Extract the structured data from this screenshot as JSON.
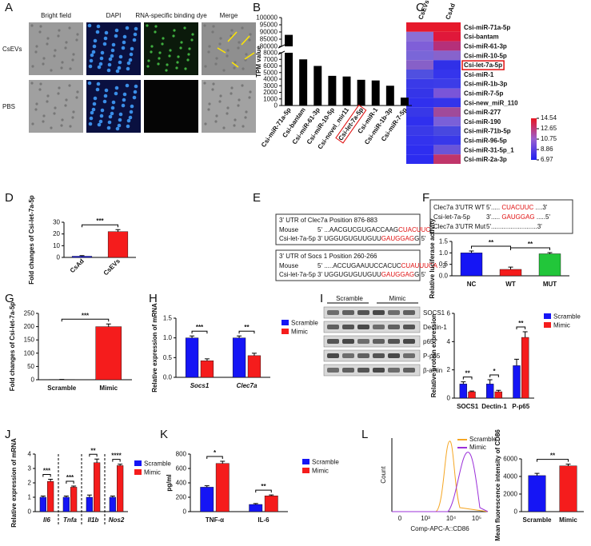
{
  "panel_labels": [
    "A",
    "B",
    "C",
    "D",
    "E",
    "F",
    "G",
    "H",
    "I",
    "J",
    "K",
    "L"
  ],
  "panel_a": {
    "columns": [
      "Bright field",
      "DAPI",
      "RNA-specific binding dye",
      "Merge"
    ],
    "rows": [
      "CsEVs",
      "PBS"
    ]
  },
  "panel_c": {
    "columns": [
      "CsEVs",
      "CsAd"
    ],
    "rows": [
      "Csi-miR-71a-5p",
      "Csi-bantam",
      "Csi-miR-61-3p",
      "Csi-miR-10-5p",
      "Csi-let-7a-5p",
      "Csi-miR-1",
      "Csi-miR-1b-3p",
      "Csi-miR-7-5p",
      "Csi-new_miR_110",
      "Csi-miR-277",
      "Csi-miR-190",
      "Csi-miR-71b-5p",
      "Csi-miR-96-5p",
      "Csi-miR-31-5p_1",
      "Csi-miR-2a-3p"
    ],
    "cells": [
      [
        "#e6192b",
        "#e6192b"
      ],
      [
        "#8a6fd6",
        "#e0183a"
      ],
      [
        "#7f5fd8",
        "#b5307a"
      ],
      [
        "#7a66d8",
        "#8763cc"
      ],
      [
        "#8760c8",
        "#3030e8"
      ],
      [
        "#5050e0",
        "#3535ec"
      ],
      [
        "#3a3ae8",
        "#3c3ce8"
      ],
      [
        "#3535e8",
        "#7a55d8"
      ],
      [
        "#3030ee",
        "#3434ea"
      ],
      [
        "#3838e8",
        "#a04a9a"
      ],
      [
        "#3030ee",
        "#7a60d8"
      ],
      [
        "#3a3ae8",
        "#4848e0"
      ],
      [
        "#3333ee",
        "#3838ea"
      ],
      [
        "#2e2ef0",
        "#6a55d8"
      ],
      [
        "#2c2cf0",
        "#c0356a"
      ]
    ],
    "colorbar": {
      "ticks": [
        14.54,
        12.65,
        10.75,
        8.86,
        6.97
      ]
    }
  },
  "panel_e": {
    "boxes": [
      {
        "title": "3' UTR of Clec7a Position 876-883",
        "lines": [
          {
            "label": "Mouse",
            "seq": [
              "5' ...AACGUCGUGACCAAG",
              "CUACUUCC",
              " ...3'"
            ]
          },
          {
            "label": "Csi-let-7a-5p",
            "seq": [
              "3' UGGUGUGUUGUU",
              "GAUGGAG",
              "G  5'"
            ]
          }
        ]
      },
      {
        "title": "3' UTR of Socs 1 Position 260-266",
        "lines": [
          {
            "label": "Mouse",
            "seq": [
              "5' .....ACCUGAAUUCCACUC",
              "CUAUUUCA",
              " ..3'"
            ]
          },
          {
            "label": "Csi-let-7a-5p",
            "seq": [
              "3' UGGUGUGUUGUU",
              "GAUGGAG",
              "G  5'"
            ]
          }
        ]
      }
    ]
  },
  "panel_f_inset": {
    "lines": [
      {
        "label": "Clec7a 3'UTR WT",
        "seq": [
          "5'..... ",
          "CUACUUC",
          " ....3'"
        ]
      },
      {
        "label": "Csi-let-7a-5p",
        "seq": [
          "3'..... ",
          "GAUGGAG",
          " .....5'"
        ]
      },
      {
        "label": "Clec7a 3'UTR Mut",
        "seq": [
          "5'..........................3'"
        ]
      }
    ]
  },
  "panel_i_blot": {
    "groups": [
      "Scramble",
      "Mimic"
    ],
    "bands": [
      "SOCS1",
      "Dectin-1",
      "p65",
      "P-p65",
      "β-actin"
    ]
  },
  "panel_l_flow": {
    "ylabel": "Count",
    "xlabel": "Comp-APC-A::CD86",
    "xticks": [
      "0",
      "10³",
      "10⁴",
      "10⁵"
    ],
    "legend": [
      {
        "name": "Scramble",
        "color": "#f5a623"
      },
      {
        "name": "Mimic",
        "color": "#9b30d9"
      }
    ]
  },
  "chart_data": [
    {
      "type": "bar",
      "ylabel": "TPM value",
      "categories": [
        "Csi-miR-71a-5p",
        "Csi-bantam",
        "Csi-miR-61-3p",
        "Csi-miR-10-5p",
        "Csi-novel_mir11",
        "Csi-let-7a-5p",
        "Csi-miR-1",
        "Csi-miR-1b-3p",
        "Csi-miR-7-5p"
      ],
      "values": [
        88000,
        7000,
        6000,
        4500,
        4400,
        3900,
        3800,
        3000,
        1200
      ],
      "color": "#000000",
      "ylim": [
        0,
        100000
      ],
      "ybreak": [
        8000,
        80000
      ],
      "yticks": [
        0,
        1000,
        2000,
        3000,
        4000,
        5000,
        6000,
        7000,
        8000,
        80000,
        85000,
        90000,
        95000,
        100000
      ]
    },
    {
      "type": "bar",
      "ylabel": "Fold changes of Csi-let-7a-5p",
      "categories": [
        "CsAd",
        "CsEVs"
      ],
      "values": [
        1,
        22
      ],
      "errors": [
        0.5,
        1.7
      ],
      "colors": [
        "#1515f5",
        "#f51c1c"
      ],
      "ylim": [
        0,
        30
      ],
      "yticks": [
        0,
        10,
        20,
        30
      ],
      "annotations": [
        "***"
      ]
    },
    {
      "type": "bar",
      "ylabel": "Relative luciferase activity",
      "categories": [
        "NC",
        "WT",
        "MUT"
      ],
      "values": [
        1.0,
        0.28,
        0.96
      ],
      "errors": [
        0.08,
        0.1,
        0.05
      ],
      "colors": [
        "#1515f5",
        "#f51c1c",
        "#22c63a"
      ],
      "ylim": [
        0,
        1.5
      ],
      "yticks": [
        {
          "value": 0,
          "label": "0.0"
        },
        {
          "value": 0.5,
          "label": "0.5"
        },
        {
          "value": 1,
          "label": "1.0"
        },
        {
          "value": 1.5,
          "label": "1.5"
        }
      ],
      "annotations": [
        "**",
        "**"
      ]
    },
    {
      "type": "bar",
      "ylabel": "Fold changes of Csi-let-7a-5p",
      "categories": [
        "Scramble",
        "Mimic"
      ],
      "values": [
        1,
        200
      ],
      "errors": [
        0.3,
        10
      ],
      "colors": [
        "#1515f5",
        "#f51c1c"
      ],
      "ylim": [
        0,
        250
      ],
      "yticks": [
        0,
        50,
        100,
        150,
        200,
        250
      ],
      "annotations": [
        "***"
      ]
    },
    {
      "type": "bar",
      "ylabel": "Relative expression of mRNA",
      "categories": [
        "Socs1",
        "Clec7a"
      ],
      "series": [
        {
          "name": "Scramble",
          "color": "#1515f5",
          "values": [
            1.0,
            1.0
          ],
          "errors": [
            0.05,
            0.05
          ]
        },
        {
          "name": "Mimic",
          "color": "#f51c1c",
          "values": [
            0.42,
            0.55
          ],
          "errors": [
            0.05,
            0.06
          ]
        }
      ],
      "ylim": [
        0,
        1.5
      ],
      "yticks": [
        {
          "value": 0,
          "label": "0.0"
        },
        {
          "value": 0.5,
          "label": "0.5"
        },
        {
          "value": 1,
          "label": "1.0"
        },
        {
          "value": 1.5,
          "label": "1.5"
        }
      ],
      "annotations": [
        "***",
        "**"
      ]
    },
    {
      "type": "bar",
      "ylabel": "Relative protein expression",
      "categories": [
        "SOCS1",
        "Dectin-1",
        "P-p65"
      ],
      "series": [
        {
          "name": "Scramble",
          "color": "#1515f5",
          "values": [
            1.0,
            1.0,
            2.3
          ],
          "errors": [
            0.15,
            0.3,
            0.45
          ]
        },
        {
          "name": "Mimic",
          "color": "#f51c1c",
          "values": [
            0.45,
            0.45,
            4.3
          ],
          "errors": [
            0.05,
            0.1,
            0.4
          ]
        }
      ],
      "ylim": [
        0,
        6
      ],
      "yticks": [
        0,
        2,
        4,
        6
      ],
      "annotations": [
        "**",
        "*",
        "**"
      ]
    },
    {
      "type": "bar",
      "ylabel": "Relative expression of mRNA",
      "categories": [
        "Il6",
        "Tnfa",
        "Il1b",
        "Nos2"
      ],
      "series": [
        {
          "name": "Scramble",
          "color": "#1515f5",
          "values": [
            1,
            1,
            1,
            1
          ],
          "errors": [
            0.08,
            0.08,
            0.15,
            0.08
          ]
        },
        {
          "name": "Mimic",
          "color": "#f51c1c",
          "values": [
            2.1,
            1.7,
            3.4,
            3.2
          ],
          "errors": [
            0.15,
            0.08,
            0.25,
            0.1
          ]
        }
      ],
      "ylim": [
        0,
        4
      ],
      "yticks": [
        0,
        1,
        2,
        3,
        4
      ],
      "annotations": [
        "***",
        "***",
        "**",
        "****"
      ]
    },
    {
      "type": "bar",
      "ylabel": "pg/ml",
      "categories": [
        "TNF-α",
        "IL-6"
      ],
      "series": [
        {
          "name": "Scramble",
          "color": "#1515f5",
          "values": [
            340,
            100
          ],
          "errors": [
            20,
            12
          ]
        },
        {
          "name": "Mimic",
          "color": "#f51c1c",
          "values": [
            670,
            220
          ],
          "errors": [
            30,
            12
          ]
        }
      ],
      "ylim": [
        0,
        800
      ],
      "yticks": [
        0,
        200,
        400,
        600,
        800
      ],
      "annotations": [
        "*",
        "**"
      ]
    },
    {
      "type": "bar",
      "ylabel": "Mean fluorescence intensity of CD86",
      "categories": [
        "Scramble",
        "Mimic"
      ],
      "values": [
        4100,
        5200
      ],
      "errors": [
        250,
        200
      ],
      "colors": [
        "#1515f5",
        "#f51c1c"
      ],
      "ylim": [
        0,
        6000
      ],
      "yticks": [
        0,
        2000,
        4000,
        6000
      ],
      "annotations": [
        "**"
      ]
    }
  ]
}
